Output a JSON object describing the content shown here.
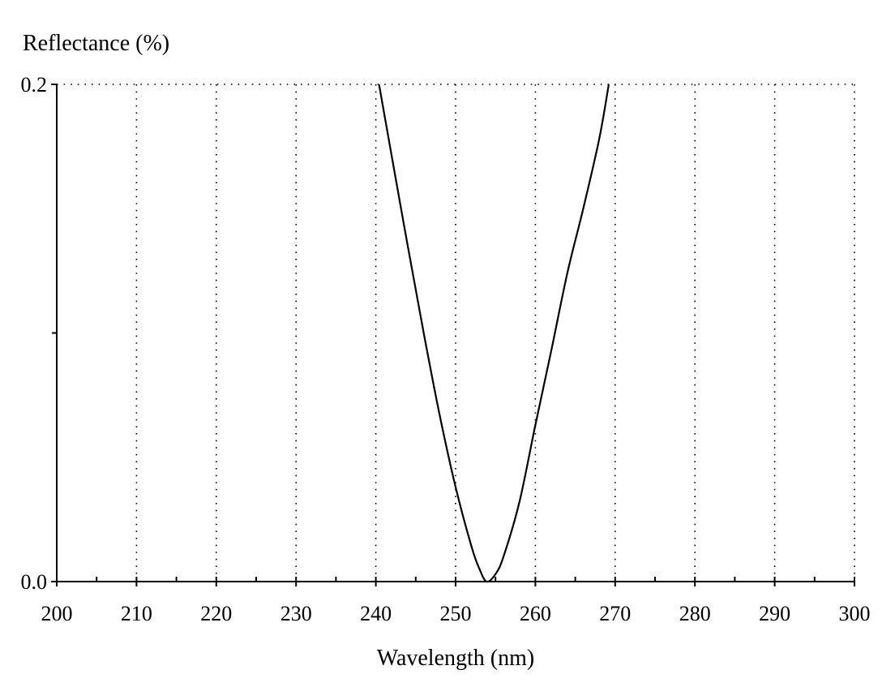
{
  "chart_data": {
    "type": "line",
    "title": "",
    "xlabel": "Wavelength (nm)",
    "ylabel": "Reflectance (%)",
    "xlim": [
      200,
      300
    ],
    "ylim": [
      0.0,
      0.2
    ],
    "x_ticks": [
      200,
      210,
      220,
      230,
      240,
      250,
      260,
      270,
      280,
      290,
      300
    ],
    "x_tick_labels": [
      "200",
      "210",
      "220",
      "230",
      "240",
      "250",
      "260",
      "270",
      "280",
      "290",
      "300"
    ],
    "x_minor_ticks": [
      205,
      215,
      225,
      235,
      245,
      255,
      265,
      275,
      285,
      295
    ],
    "y_tick_labels": [
      "0.0",
      "0.2"
    ],
    "y_ticks": [
      0.0,
      0.2
    ],
    "y_minor_ticks": [
      0.1
    ],
    "grid": "dotted vertical at major x ticks; dotted horizontal at top",
    "line_color": "#000000",
    "series": [
      {
        "x": [
          240.4,
          242,
          244,
          246,
          248,
          250,
          252,
          253,
          253.9,
          255,
          256,
          258,
          260,
          262,
          264,
          266,
          268,
          269.2
        ],
        "values": [
          0.2,
          0.171,
          0.135,
          0.1,
          0.067,
          0.038,
          0.014,
          0.005,
          0.0,
          0.003,
          0.01,
          0.032,
          0.063,
          0.093,
          0.124,
          0.15,
          0.178,
          0.2
        ]
      }
    ]
  }
}
